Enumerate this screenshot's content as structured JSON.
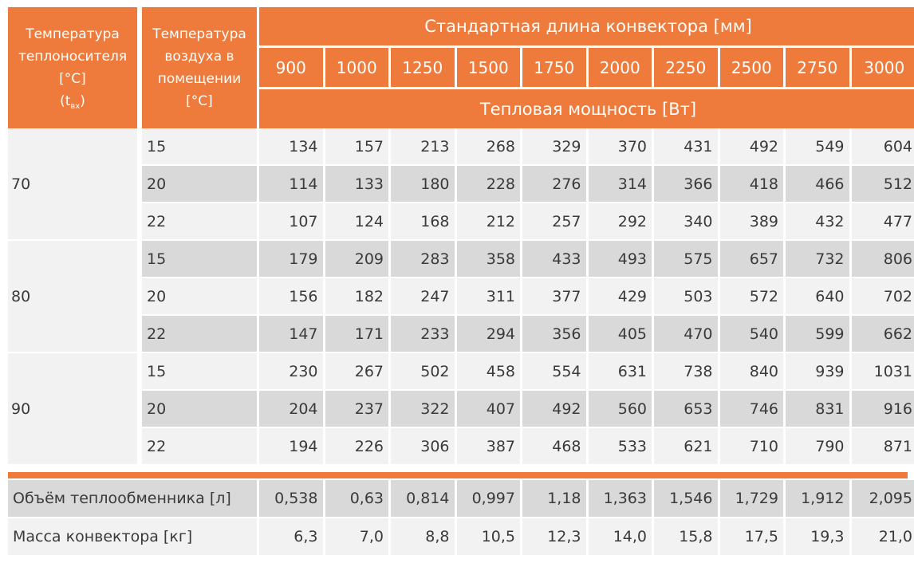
{
  "header": {
    "col_coolant_temp_lines": [
      "Температура",
      "теплоносителя",
      "[°C]"
    ],
    "col_coolant_sym": "t",
    "col_coolant_sub": "вх",
    "col_air_temp_lines": [
      "Температура",
      "воздуха в",
      "помещении",
      "[°C]"
    ],
    "length_title": "Стандартная длина конвектора [мм]",
    "lengths": [
      "900",
      "1000",
      "1250",
      "1500",
      "1750",
      "2000",
      "2250",
      "2500",
      "2750",
      "3000"
    ],
    "power_title": "Тепловая мощность [Вт]"
  },
  "groups": [
    {
      "coolant": "70",
      "rows": [
        {
          "air": "15",
          "values": [
            "134",
            "157",
            "213",
            "268",
            "329",
            "370",
            "431",
            "492",
            "549",
            "604"
          ]
        },
        {
          "air": "20",
          "values": [
            "114",
            "133",
            "180",
            "228",
            "276",
            "314",
            "366",
            "418",
            "466",
            "512"
          ]
        },
        {
          "air": "22",
          "values": [
            "107",
            "124",
            "168",
            "212",
            "257",
            "292",
            "340",
            "389",
            "432",
            "477"
          ]
        }
      ]
    },
    {
      "coolant": "80",
      "rows": [
        {
          "air": "15",
          "values": [
            "179",
            "209",
            "283",
            "358",
            "433",
            "493",
            "575",
            "657",
            "732",
            "806"
          ]
        },
        {
          "air": "20",
          "values": [
            "156",
            "182",
            "247",
            "311",
            "377",
            "429",
            "503",
            "572",
            "640",
            "702"
          ]
        },
        {
          "air": "22",
          "values": [
            "147",
            "171",
            "233",
            "294",
            "356",
            "405",
            "470",
            "540",
            "599",
            "662"
          ]
        }
      ]
    },
    {
      "coolant": "90",
      "rows": [
        {
          "air": "15",
          "values": [
            "230",
            "267",
            "502",
            "458",
            "554",
            "631",
            "738",
            "840",
            "939",
            "1031"
          ]
        },
        {
          "air": "20",
          "values": [
            "204",
            "237",
            "322",
            "407",
            "492",
            "560",
            "653",
            "746",
            "831",
            "916"
          ]
        },
        {
          "air": "22",
          "values": [
            "194",
            "226",
            "306",
            "387",
            "468",
            "533",
            "621",
            "710",
            "790",
            "871"
          ]
        }
      ]
    }
  ],
  "extra_rows": [
    {
      "label": "Объём теплообменника [л]",
      "values": [
        "0,538",
        "0,63",
        "0,814",
        "0,997",
        "1,18",
        "1,363",
        "1,546",
        "1,729",
        "1,912",
        "2,095"
      ]
    },
    {
      "label": "Масса конвектора [кг]",
      "values": [
        "6,3",
        "7,0",
        "8,8",
        "10,5",
        "12,3",
        "14,0",
        "15,8",
        "17,5",
        "19,3",
        "21,0"
      ]
    }
  ],
  "colors": {
    "accent": "#ee7b3c",
    "row_light": "#f2f2f2",
    "row_dark": "#d9d9d9"
  }
}
